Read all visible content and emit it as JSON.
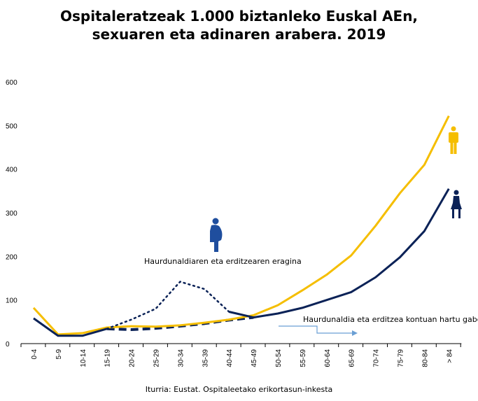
{
  "chart_data": {
    "type": "line",
    "title_line1": "Ospitaleratzeak 1.000 biztanleko Euskal AEn,",
    "title_line2": "sexuaren eta adinaren arabera. 2019",
    "categories": [
      "0-4",
      "5-9",
      "10-14",
      "15-19",
      "20-24",
      "25-29",
      "30-34",
      "35-39",
      "40-44",
      "45-49",
      "50-54",
      "55-59",
      "60-64",
      "65-69",
      "70-74",
      "75-79",
      "80-84",
      "> 84"
    ],
    "yticks": [
      "0",
      "100",
      "200",
      "300",
      "400",
      "500",
      "600"
    ],
    "ylim": [
      0,
      600
    ],
    "grid": false,
    "series": [
      {
        "name": "Gizonak",
        "color": "#F5BE00",
        "values": [
          82,
          21,
          24,
          37,
          40,
          39,
          42,
          48,
          55,
          65,
          88,
          122,
          158,
          202,
          270,
          345,
          410,
          522
        ]
      },
      {
        "name": "Emakumeak (haurdunaldiaren eta erditzearen eragina)",
        "color": "#0B2257",
        "values": [
          58,
          18,
          18,
          34,
          55,
          80,
          142,
          125,
          73,
          60,
          69,
          82,
          100,
          118,
          152,
          198,
          258,
          355
        ]
      },
      {
        "name": "Emakumeak (haurdunaldia eta erditzea kontuan hartu gabe)",
        "color": "#0B2257",
        "values": [
          null,
          null,
          null,
          34,
          32,
          35,
          40,
          46,
          54,
          60,
          null,
          null,
          null,
          null,
          null,
          null,
          null,
          null
        ]
      }
    ],
    "annotations": {
      "pregnancy_effect": "Haurdunaldiaren eta erditzearen eragina",
      "without_pregnancy": "Haurdunaldia eta erditzea kontuan hartu gabe"
    },
    "source": "Iturria: Eustat. Ospitaleetako erikortasun-inkesta"
  },
  "colors": {
    "male": "#F5BE00",
    "female": "#0B2257",
    "pregnant_icon": "#1F4E9E",
    "arrow": "#6A9FD4"
  }
}
